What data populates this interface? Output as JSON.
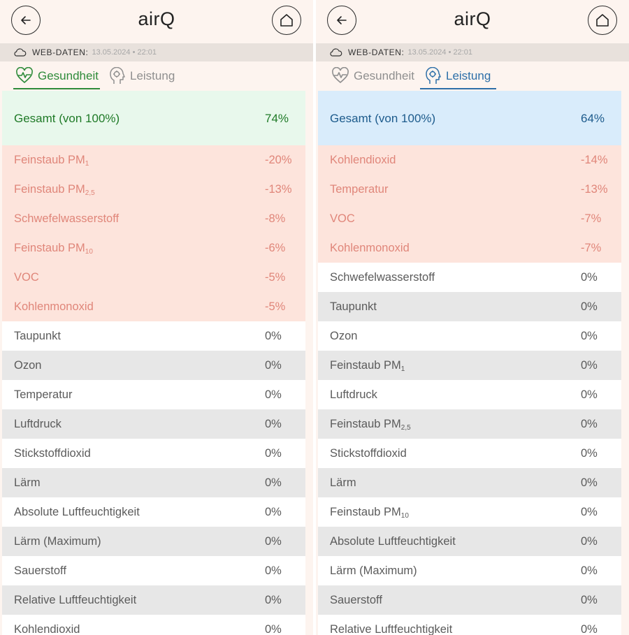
{
  "panels": [
    {
      "title": "airQ",
      "web": {
        "label": "WEB-DATEN:",
        "timestamp": "13.05.2024 • 22:01"
      },
      "tabs": [
        {
          "label": "Gesundheit",
          "active": true
        },
        {
          "label": "Leistung",
          "active": false
        }
      ],
      "accent": "#2e8b3a",
      "total": {
        "name": "Gesamt (von 100%)",
        "value": "74%"
      },
      "rows": [
        {
          "name": "Feinstaub PM",
          "sub": "1",
          "value": "-20%",
          "neg": true
        },
        {
          "name": "Feinstaub PM",
          "sub": "2,5",
          "value": "-13%",
          "neg": true
        },
        {
          "name": "Schwefelwasserstoff",
          "value": "-8%",
          "neg": true
        },
        {
          "name": "Feinstaub PM",
          "sub": "10",
          "value": "-6%",
          "neg": true
        },
        {
          "name": "VOC",
          "value": "-5%",
          "neg": true
        },
        {
          "name": "Kohlenmonoxid",
          "value": "-5%",
          "neg": true
        },
        {
          "name": "Taupunkt",
          "value": "0%"
        },
        {
          "name": "Ozon",
          "value": "0%"
        },
        {
          "name": "Temperatur",
          "value": "0%"
        },
        {
          "name": "Luftdruck",
          "value": "0%"
        },
        {
          "name": "Stickstoffdioxid",
          "value": "0%"
        },
        {
          "name": "Lärm",
          "value": "0%"
        },
        {
          "name": "Absolute Luftfeuchtigkeit",
          "value": "0%"
        },
        {
          "name": "Lärm (Maximum)",
          "value": "0%"
        },
        {
          "name": "Sauerstoff",
          "value": "0%"
        },
        {
          "name": "Relative Luftfeuchtigkeit",
          "value": "0%"
        },
        {
          "name": "Kohlendioxid",
          "value": "0%"
        }
      ]
    },
    {
      "title": "airQ",
      "web": {
        "label": "WEB-DATEN:",
        "timestamp": "13.05.2024 • 22:01"
      },
      "tabs": [
        {
          "label": "Gesundheit",
          "active": false
        },
        {
          "label": "Leistung",
          "active": true
        }
      ],
      "accent": "#2d6fa8",
      "total": {
        "name": "Gesamt (von 100%)",
        "value": "64%"
      },
      "rows": [
        {
          "name": "Kohlendioxid",
          "value": "-14%",
          "neg": true
        },
        {
          "name": "Temperatur",
          "value": "-13%",
          "neg": true
        },
        {
          "name": "VOC",
          "value": "-7%",
          "neg": true
        },
        {
          "name": "Kohlenmonoxid",
          "value": "-7%",
          "neg": true
        },
        {
          "name": "Schwefelwasserstoff",
          "value": "0%"
        },
        {
          "name": "Taupunkt",
          "value": "0%"
        },
        {
          "name": "Ozon",
          "value": "0%"
        },
        {
          "name": "Feinstaub PM",
          "sub": "1",
          "value": "0%"
        },
        {
          "name": "Luftdruck",
          "value": "0%"
        },
        {
          "name": "Feinstaub PM",
          "sub": "2,5",
          "value": "0%"
        },
        {
          "name": "Stickstoffdioxid",
          "value": "0%"
        },
        {
          "name": "Lärm",
          "value": "0%"
        },
        {
          "name": "Feinstaub PM",
          "sub": "10",
          "value": "0%"
        },
        {
          "name": "Absolute Luftfeuchtigkeit",
          "value": "0%"
        },
        {
          "name": "Lärm (Maximum)",
          "value": "0%"
        },
        {
          "name": "Sauerstoff",
          "value": "0%"
        },
        {
          "name": "Relative Luftfeuchtigkeit",
          "value": "0%"
        }
      ]
    }
  ],
  "icons": {
    "back": "arrow-left-icon",
    "home": "home-icon",
    "cloud": "cloud-icon",
    "health": "heart-pulse-icon",
    "performance": "head-brain-icon"
  }
}
